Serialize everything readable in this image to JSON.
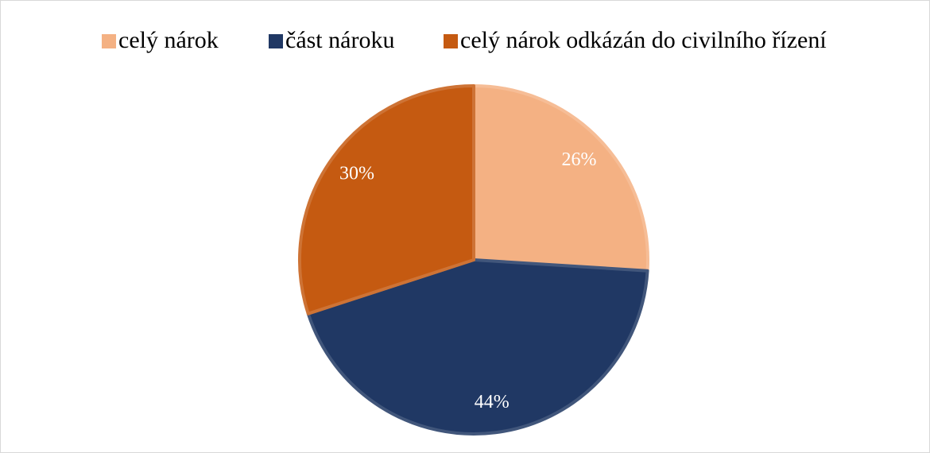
{
  "chart_data": {
    "type": "pie",
    "categories": [
      "celý nárok",
      "část nároku",
      "celý nárok odkázán do civilního řízení"
    ],
    "values": [
      26,
      44,
      30
    ],
    "value_labels": [
      "26%",
      "44%",
      "30%"
    ],
    "colors": [
      "#f4b183",
      "#203864",
      "#c55a11"
    ],
    "legend": "top"
  }
}
